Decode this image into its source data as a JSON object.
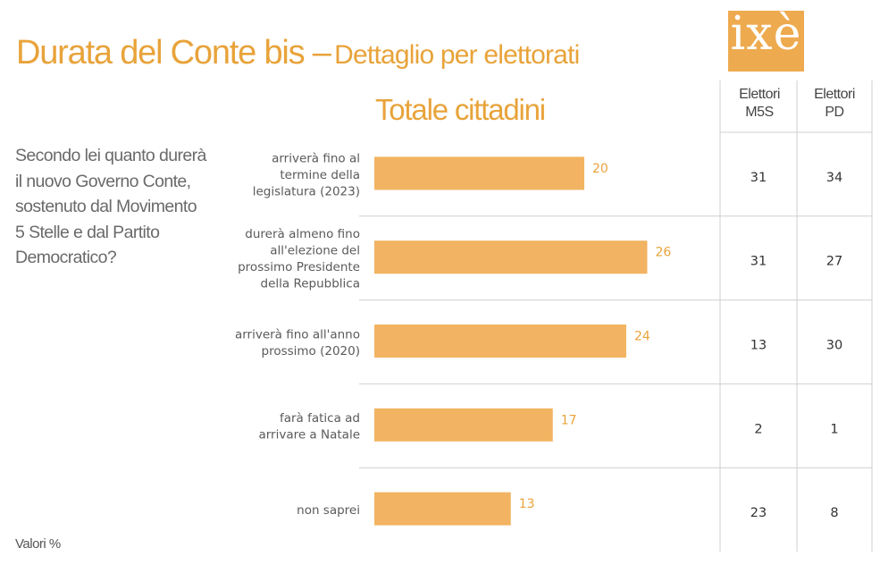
{
  "header": {
    "title_main": "Durata del Conte bis –",
    "title_sub": "Dettaglio per elettorati",
    "logo_text": "ixè"
  },
  "question": "Secondo lei quanto durerà il nuovo Governo Conte, sostenuto dal Movimento 5 Stelle e dal Partito Democratico?",
  "section_title": "Totale cittadini",
  "columns": [
    {
      "label_line1": "Elettori",
      "label_line2": "M5S"
    },
    {
      "label_line1": "Elettori",
      "label_line2": "PD"
    }
  ],
  "footer_note": "Valori %",
  "colors": {
    "accent": "#e8a33a",
    "bar": "#f2b462",
    "grid": "#cfcfcf",
    "logo_bg": "#eeaa4f"
  },
  "chart_data": {
    "type": "bar",
    "orientation": "horizontal",
    "categories": [
      [
        "arriverà fino al",
        "termine della",
        "legislatura (2023)"
      ],
      [
        "durerà almeno fino",
        "all'elezione del",
        "prossimo Presidente",
        "della Repubblica"
      ],
      [
        "arriverà fino all'anno",
        "prossimo (2020)"
      ],
      [
        "farà fatica ad",
        "arrivare a Natale"
      ],
      [
        "non saprei"
      ]
    ],
    "series": [
      {
        "name": "Totale cittadini",
        "values": [
          20,
          26,
          24,
          17,
          13
        ]
      }
    ],
    "table": [
      {
        "name": "Elettori M5S",
        "values": [
          31,
          31,
          13,
          2,
          23
        ]
      },
      {
        "name": "Elettori PD",
        "values": [
          34,
          27,
          30,
          1,
          8
        ]
      }
    ],
    "xlim": [
      0,
      35
    ],
    "title": "Totale cittadini",
    "unit": "Valori %",
    "grid": false
  }
}
